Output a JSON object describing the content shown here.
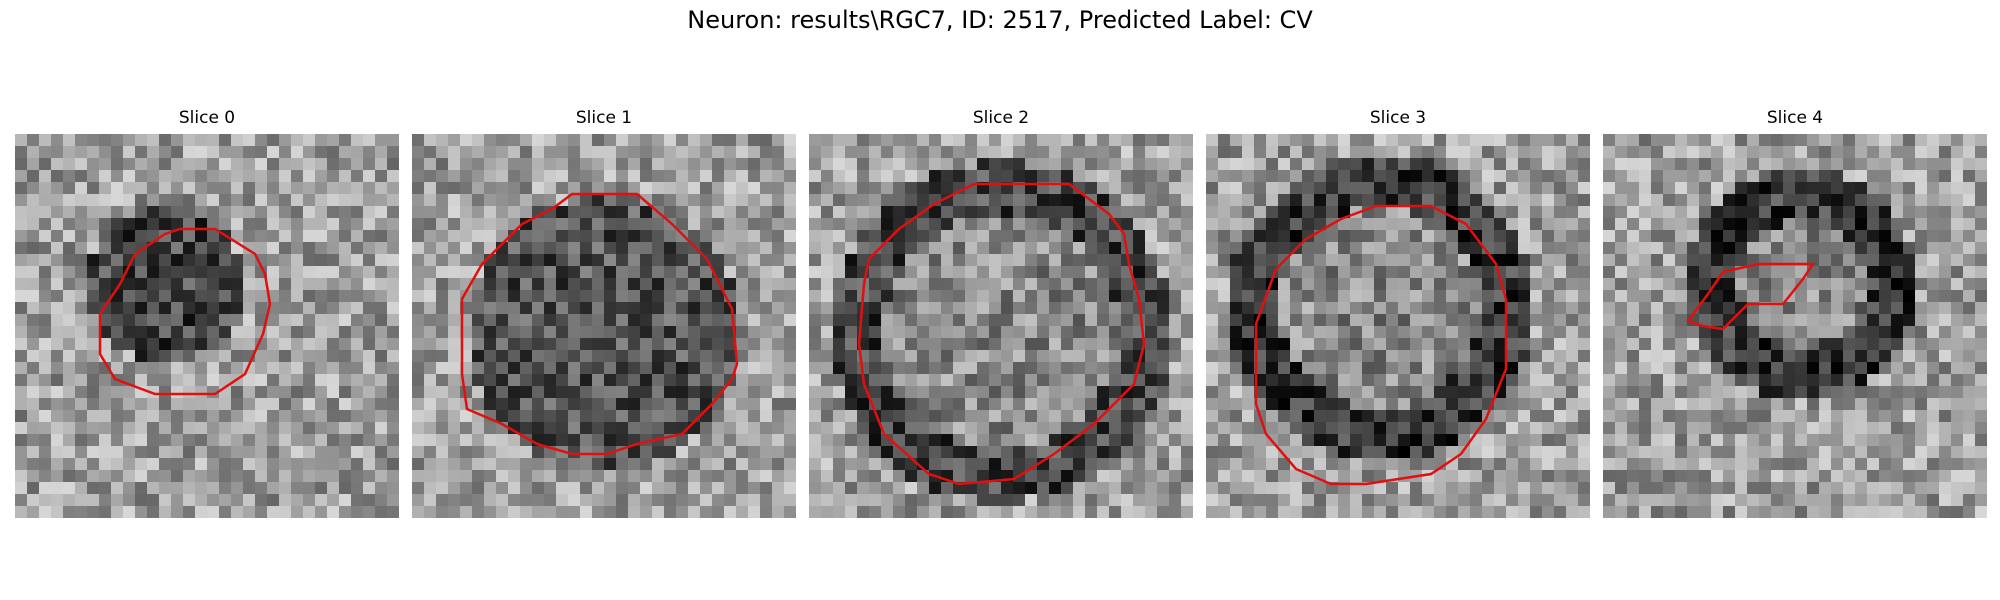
{
  "figure": {
    "title": "Neuron: results\\RGC7, ID: 2517, Predicted Label: CV",
    "contour_color": "#e01010",
    "colormap": "gray",
    "panels": [
      {
        "label": "Slice 0"
      },
      {
        "label": "Slice 1"
      },
      {
        "label": "Slice 2"
      },
      {
        "label": "Slice 3"
      },
      {
        "label": "Slice 4"
      }
    ]
  }
}
